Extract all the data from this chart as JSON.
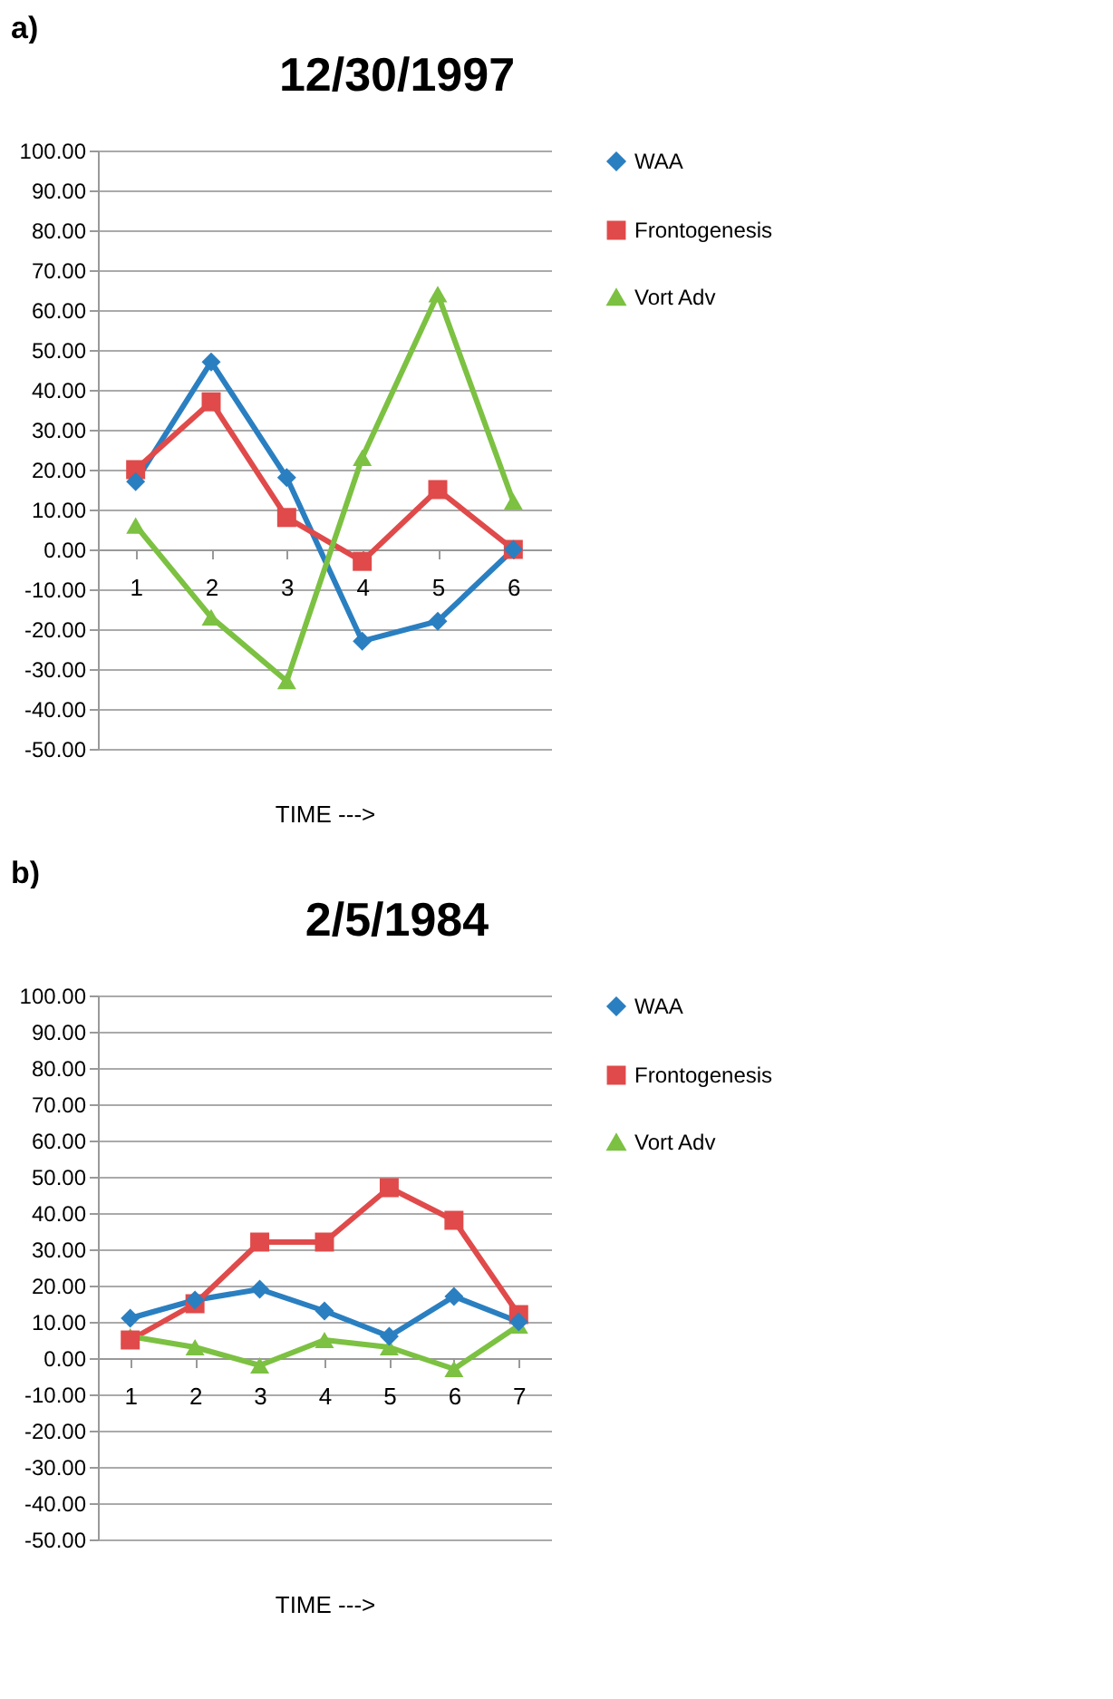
{
  "chart_data": [
    {
      "type": "line",
      "title": "12/30/1997",
      "xlabel": "TIME --->",
      "annotations": [
        "a)"
      ],
      "categories": [
        "1",
        "2",
        "3",
        "4",
        "5",
        "6"
      ],
      "series": [
        {
          "name": "WAA",
          "color": "#2a7fc1",
          "marker": "diamond",
          "values": [
            17,
            47,
            18,
            -23,
            -18,
            0
          ]
        },
        {
          "name": "Frontogenesis",
          "color": "#e04a4a",
          "marker": "square",
          "values": [
            20,
            37,
            8,
            -3,
            15,
            0
          ]
        },
        {
          "name": "Vort Adv",
          "color": "#7cc142",
          "marker": "triangle",
          "values": [
            6,
            -17,
            -33,
            23,
            64,
            12
          ]
        }
      ],
      "ylim": [
        -50,
        100
      ],
      "yticks": [
        {
          "value": -50,
          "label": "-50.00"
        },
        {
          "value": -40,
          "label": "-40.00"
        },
        {
          "value": -30,
          "label": "-30.00"
        },
        {
          "value": -20,
          "label": "-20.00"
        },
        {
          "value": -10,
          "label": "-10.00"
        },
        {
          "value": 0,
          "label": "0.00"
        },
        {
          "value": 10,
          "label": "10.00"
        },
        {
          "value": 20,
          "label": "20.00"
        },
        {
          "value": 30,
          "label": "30.00"
        },
        {
          "value": 40,
          "label": "40.00"
        },
        {
          "value": 50,
          "label": "50.00"
        },
        {
          "value": 60,
          "label": "60.00"
        },
        {
          "value": 70,
          "label": "70.00"
        },
        {
          "value": 80,
          "label": "80.00"
        },
        {
          "value": 90,
          "label": "90.00"
        },
        {
          "value": 100,
          "label": "100.00"
        }
      ],
      "grid": "y",
      "legend": "right"
    },
    {
      "type": "line",
      "title": "2/5/1984",
      "xlabel": "TIME --->",
      "annotations": [
        "b)"
      ],
      "categories": [
        "1",
        "2",
        "3",
        "4",
        "5",
        "6",
        "7"
      ],
      "series": [
        {
          "name": "WAA",
          "color": "#2a7fc1",
          "marker": "diamond",
          "values": [
            11,
            16,
            19,
            13,
            6,
            17,
            10
          ]
        },
        {
          "name": "Frontogenesis",
          "color": "#e04a4a",
          "marker": "square",
          "values": [
            5,
            15,
            32,
            32,
            47,
            38,
            12
          ]
        },
        {
          "name": "Vort Adv",
          "color": "#7cc142",
          "marker": "triangle",
          "values": [
            6,
            3,
            -2,
            5,
            3,
            -3,
            9
          ]
        }
      ],
      "ylim": [
        -50,
        100
      ],
      "yticks": [
        {
          "value": -50,
          "label": "-50.00"
        },
        {
          "value": -40,
          "label": "-40.00"
        },
        {
          "value": -30,
          "label": "-30.00"
        },
        {
          "value": -20,
          "label": "-20.00"
        },
        {
          "value": -10,
          "label": "-10.00"
        },
        {
          "value": 0,
          "label": "0.00"
        },
        {
          "value": 10,
          "label": "10.00"
        },
        {
          "value": 20,
          "label": "20.00"
        },
        {
          "value": 30,
          "label": "30.00"
        },
        {
          "value": 40,
          "label": "40.00"
        },
        {
          "value": 50,
          "label": "50.00"
        },
        {
          "value": 60,
          "label": "60.00"
        },
        {
          "value": 70,
          "label": "70.00"
        },
        {
          "value": 80,
          "label": "80.00"
        },
        {
          "value": 90,
          "label": "90.00"
        },
        {
          "value": 100,
          "label": "100.00"
        }
      ],
      "grid": "y",
      "legend": "right"
    }
  ]
}
